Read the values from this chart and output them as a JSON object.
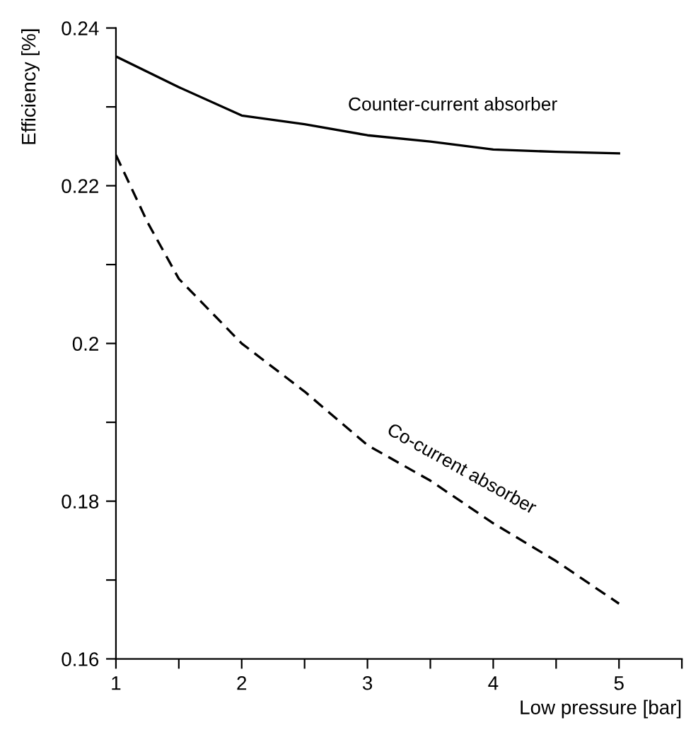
{
  "chart_data": {
    "type": "line",
    "xlabel": "Low pressure [bar]",
    "ylabel": "Efficiency [%]",
    "x": [
      1,
      1.5,
      2,
      2.5,
      3,
      3.5,
      4,
      4.5,
      5
    ],
    "series": [
      {
        "color": "#000000",
        "line_style": "solid",
        "values": [
          0.2364,
          0.2325,
          0.2289,
          0.2278,
          0.2264,
          0.2256,
          0.2246,
          0.2243,
          0.2241
        ]
      },
      {
        "color": "#000000",
        "line_style": "dashed",
        "x": [
          1,
          1.25,
          1.5,
          2,
          2.5,
          3,
          3.5,
          4,
          4.5,
          5
        ],
        "values": [
          0.2239,
          0.2154,
          0.2082,
          0.2,
          0.1939,
          0.1871,
          0.1826,
          0.1772,
          0.1724,
          0.167
        ]
      }
    ],
    "annotations": [
      "Counter-current absorber",
      "Co-current absorber"
    ],
    "xlim": [
      1,
      5.5
    ],
    "ylim": [
      0.16,
      0.24
    ],
    "xticks": [
      1,
      {
        "value": 1.5,
        "label": null
      },
      2,
      {
        "value": 2.5,
        "label": null
      },
      3,
      {
        "value": 3.5,
        "label": null
      },
      4,
      {
        "value": 4.5,
        "label": null
      },
      5,
      {
        "value": 5.5,
        "label": null
      }
    ],
    "yticks": [
      0.16,
      {
        "value": 0.17,
        "label": null
      },
      0.18,
      {
        "value": 0.19,
        "label": null
      },
      0.2,
      {
        "value": 0.21,
        "label": null
      },
      0.22,
      {
        "value": 0.23,
        "label": null
      },
      0.24
    ],
    "grid": false,
    "legend": false,
    "marker": "none"
  }
}
